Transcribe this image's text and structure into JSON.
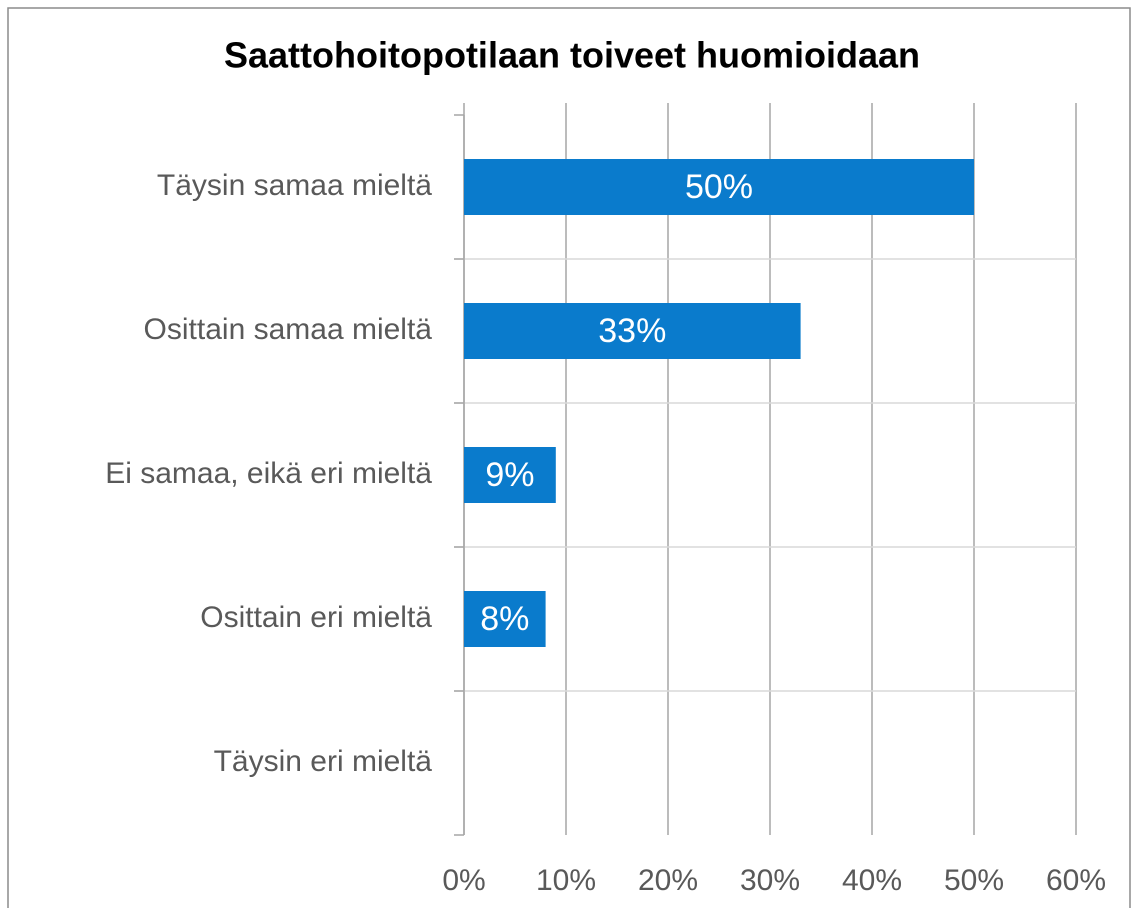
{
  "chart_data": {
    "type": "bar",
    "orientation": "horizontal",
    "title": "Saattohoitopotilaan toiveet huomioidaan",
    "categories": [
      "Täysin samaa mieltä",
      "Osittain samaa mieltä",
      "Ei samaa, eikä eri mieltä",
      "Osittain eri mieltä",
      "Täysin eri mieltä"
    ],
    "values": [
      50,
      33,
      9,
      8,
      0
    ],
    "value_labels": [
      "50%",
      "33%",
      "9%",
      "8%",
      null
    ],
    "color": "#0a7bcc",
    "xlim": [
      0,
      60
    ],
    "xticks": [
      {
        "value": 0,
        "label": "0%"
      },
      {
        "value": 10,
        "label": "10%"
      },
      {
        "value": 20,
        "label": "20%"
      },
      {
        "value": 30,
        "label": "30%"
      },
      {
        "value": 40,
        "label": "40%"
      },
      {
        "value": 50,
        "label": "50%"
      },
      {
        "value": 60,
        "label": "60%"
      }
    ],
    "grid": true
  }
}
